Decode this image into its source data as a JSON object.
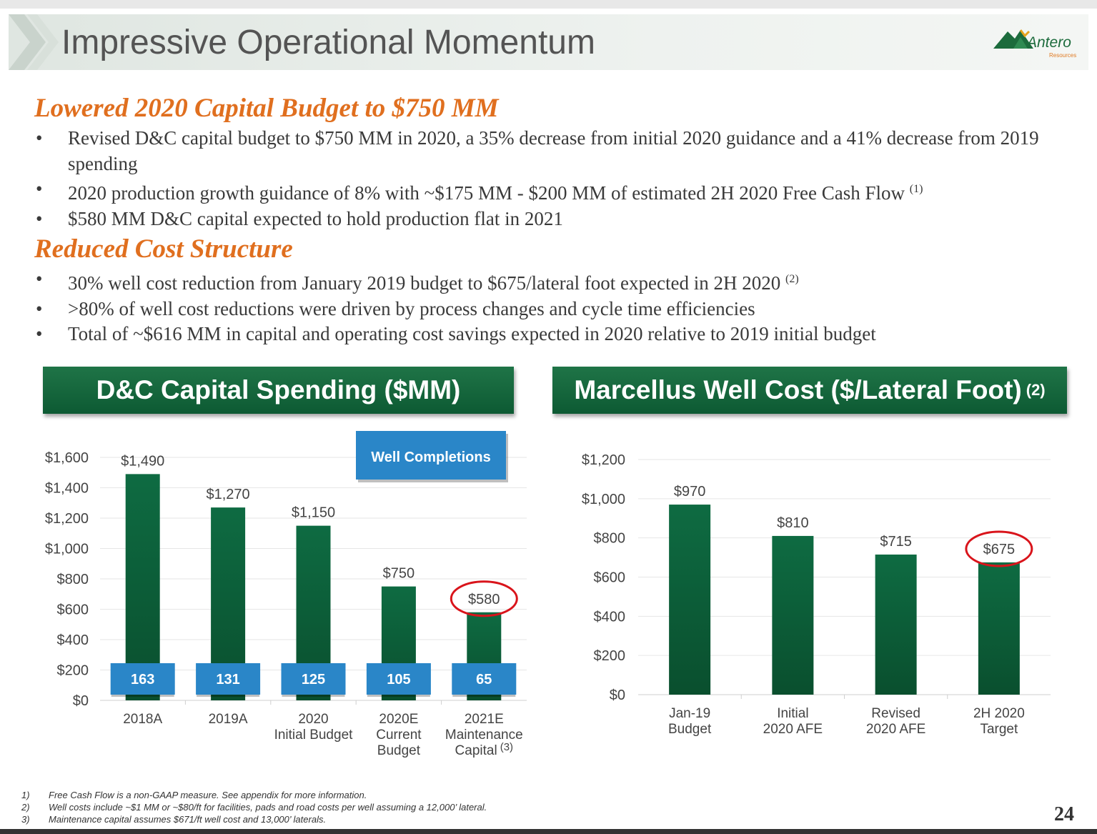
{
  "header": {
    "title": "Impressive Operational Momentum"
  },
  "logo": {
    "name": "Antero",
    "sub": "Resources"
  },
  "sections": [
    {
      "heading": "Lowered 2020 Capital Budget to $750 MM",
      "bullets": [
        {
          "text": "Revised D&C capital budget to $750 MM in 2020, a 35% decrease from initial 2020 guidance and a 41% decrease from 2019 spending",
          "sup": ""
        },
        {
          "text": "2020 production growth guidance of 8% with ~$175 MM - $200 MM of estimated 2H 2020 Free Cash Flow",
          "sup": "(1)"
        },
        {
          "text": "$580 MM D&C capital expected to hold production flat in 2021",
          "sup": ""
        }
      ]
    },
    {
      "heading": "Reduced Cost Structure",
      "bullets": [
        {
          "text": "30% well cost reduction from January 2019 budget to $675/lateral foot expected in 2H 2020",
          "sup": "(2)"
        },
        {
          "text": ">80% of well cost reductions were driven by process changes and cycle time efficiencies",
          "sup": ""
        },
        {
          "text": "Total of ~$616 MM in capital and operating cost savings expected in 2020 relative to 2019 initial budget",
          "sup": ""
        }
      ]
    }
  ],
  "panels": {
    "left_title": "D&C Capital Spending ($MM)",
    "right_title": "Marcellus Well Cost ($/Lateral Foot)",
    "right_title_sup": "(2)"
  },
  "chart_data": [
    {
      "type": "bar",
      "title": "D&C Capital Spending ($MM)",
      "categories": [
        [
          "2018A"
        ],
        [
          "2019A"
        ],
        [
          "2020",
          "Initial Budget"
        ],
        [
          "2020E",
          "Current",
          "Budget"
        ],
        [
          "2021E",
          "Maintenance",
          "Capital"
        ]
      ],
      "category_sup": [
        "",
        "",
        "",
        "",
        "(3)"
      ],
      "values": [
        1490,
        1270,
        1150,
        750,
        580
      ],
      "value_labels": [
        "$1,490",
        "$1,270",
        "$1,150",
        "$750",
        "$580"
      ],
      "completions_label": "Well Completions",
      "completions": [
        "163",
        "131",
        "125",
        "105",
        "65"
      ],
      "ylim": [
        0,
        1600
      ],
      "yticks": [
        0,
        200,
        400,
        600,
        800,
        1000,
        1200,
        1400,
        1600
      ],
      "ytick_labels": [
        "$0",
        "$200",
        "$400",
        "$600",
        "$800",
        "$1,000",
        "$1,200",
        "$1,400",
        "$1,600"
      ],
      "highlight_index": 4,
      "bar_color": "#0e6b42",
      "completion_color": "#2a86c8",
      "highlight_color": "#d9141b"
    },
    {
      "type": "bar",
      "title": "Marcellus Well Cost ($/Lateral Foot)",
      "categories": [
        [
          "Jan-19",
          "Budget"
        ],
        [
          "Initial",
          "2020 AFE"
        ],
        [
          "Revised",
          "2020 AFE"
        ],
        [
          "2H 2020",
          "Target"
        ]
      ],
      "values": [
        970,
        810,
        715,
        675
      ],
      "value_labels": [
        "$970",
        "$810",
        "$715",
        "$675"
      ],
      "ylim": [
        0,
        1200
      ],
      "yticks": [
        0,
        200,
        400,
        600,
        800,
        1000,
        1200
      ],
      "ytick_labels": [
        "$0",
        "$200",
        "$400",
        "$600",
        "$800",
        "$1,000",
        "$1,200"
      ],
      "highlight_index": 3,
      "bar_color": "#0e6b42",
      "highlight_color": "#d9141b"
    }
  ],
  "footnotes": [
    {
      "num": "1)",
      "text": "Free Cash Flow is a non-GAAP measure.  See appendix for more information."
    },
    {
      "num": "2)",
      "text": "Well costs include ~$1 MM or ~$80/ft for facilities, pads and road costs per well assuming a 12,000’ lateral."
    },
    {
      "num": "3)",
      "text": "Maintenance capital assumes $671/ft well cost and 13,000’ laterals."
    }
  ],
  "page_number": "24"
}
